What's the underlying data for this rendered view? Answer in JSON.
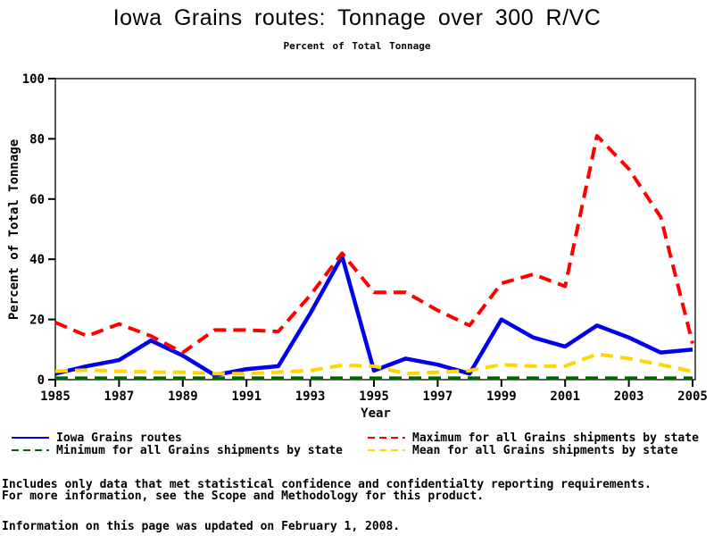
{
  "header": {
    "title": "Iowa Grains routes: Tonnage over 300 R/VC",
    "subtitle": "Percent of Total Tonnage"
  },
  "chart_data": {
    "type": "line",
    "x": [
      1985,
      1986,
      1987,
      1988,
      1989,
      1990,
      1991,
      1992,
      1993,
      1994,
      1995,
      1996,
      1997,
      1998,
      1999,
      2000,
      2001,
      2002,
      2003,
      2004,
      2005
    ],
    "xticks": [
      1985,
      1987,
      1989,
      1991,
      1993,
      1995,
      1997,
      1999,
      2001,
      2003,
      2005
    ],
    "yticks": [
      0,
      20,
      40,
      60,
      80,
      100
    ],
    "ylim": [
      0,
      100
    ],
    "xlabel": "Year",
    "ylabel": "Percent of Total Tonnage",
    "grid": false,
    "legend_position": "bottom",
    "series": [
      {
        "name": "Iowa Grains routes",
        "color": "#0000ee",
        "line_style": "solid",
        "values": [
          2,
          4.5,
          6.5,
          13,
          8,
          1.5,
          3.5,
          4.5,
          22,
          41,
          3,
          7,
          5,
          2,
          20,
          14,
          11,
          18,
          14,
          9,
          10
        ]
      },
      {
        "name": "Maximum for all Grains shipments by state",
        "color": "#ff0000",
        "line_style": "dashed",
        "values": [
          19,
          14.5,
          18.5,
          14.5,
          9,
          16.5,
          16.5,
          16,
          28,
          42,
          29,
          29,
          23,
          18,
          32,
          35,
          31,
          81,
          70,
          54,
          12
        ]
      },
      {
        "name": "Minimum for all Grains shipments by state",
        "color": "#006400",
        "line_style": "dashed",
        "values": [
          0.5,
          0.5,
          0.5,
          0.5,
          0.5,
          0.5,
          0.5,
          0.5,
          0.5,
          0.5,
          0.5,
          0.5,
          0.5,
          0.5,
          0.5,
          0.5,
          0.5,
          0.5,
          0.5,
          0.5,
          0.5
        ]
      },
      {
        "name": "Mean for all Grains shipments by state",
        "color": "#ffd600",
        "line_style": "dashed",
        "values": [
          2.8,
          3.2,
          2.8,
          2.5,
          2.5,
          2,
          2,
          2.5,
          3,
          4.8,
          4.5,
          2,
          2.5,
          3,
          5,
          4.5,
          4.5,
          8.5,
          7,
          5,
          2.7
        ]
      }
    ]
  },
  "footnotes": {
    "line1": "Includes only data that met statistical confidence and confidentialty reporting requirements.",
    "line2": "For more information, see the Scope and Methodology for this product.",
    "updated": "Information on this page was updated on February 1, 2008."
  }
}
